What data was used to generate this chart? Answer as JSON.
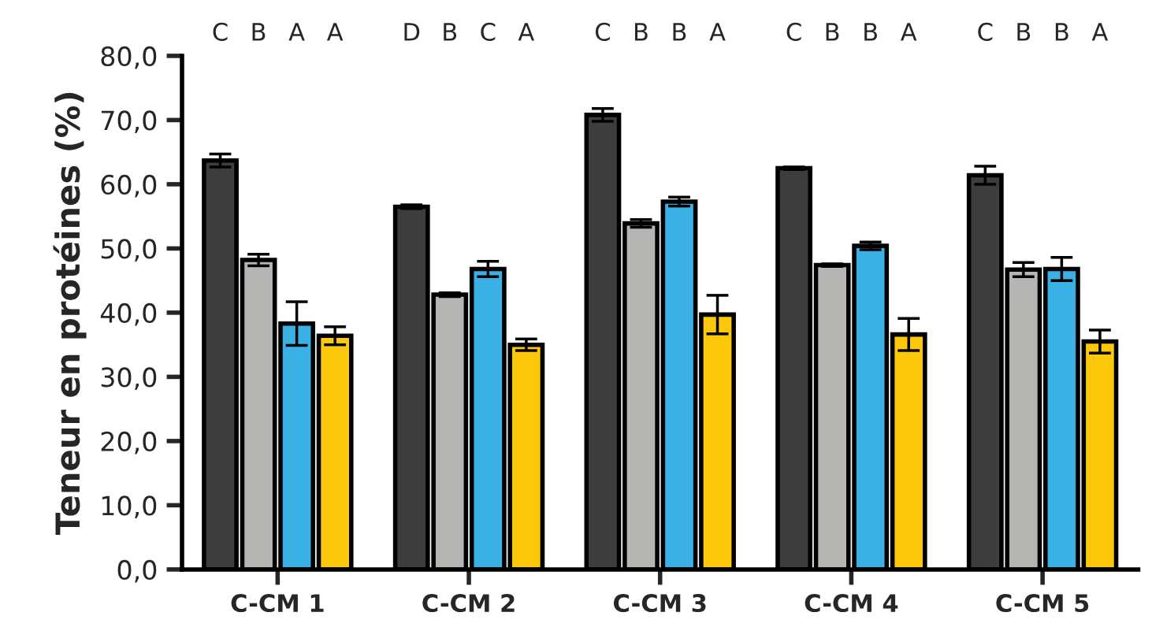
{
  "chart_data": {
    "type": "bar",
    "ylabel": "Teneur en protéines (%)",
    "categories": [
      "C-CM 1",
      "C-CM 2",
      "C-CM 3",
      "C-CM 4",
      "C-CM 5"
    ],
    "ylim": [
      0,
      80
    ],
    "yticks": [
      {
        "value": 0,
        "label": "0,0"
      },
      {
        "value": 10,
        "label": "10,0"
      },
      {
        "value": 20,
        "label": "20,0"
      },
      {
        "value": 30,
        "label": "30,0"
      },
      {
        "value": 40,
        "label": "40,0"
      },
      {
        "value": 50,
        "label": "50,0"
      },
      {
        "value": 60,
        "label": "60,0"
      },
      {
        "value": 70,
        "label": "70,0"
      },
      {
        "value": 80,
        "label": "80,0"
      }
    ],
    "grid": false,
    "legend": false,
    "annotations": [
      "C",
      "B",
      "A",
      "A",
      "D",
      "B",
      "C",
      "A",
      "C",
      "B",
      "B",
      "A",
      "C",
      "B",
      "B",
      "A",
      "C",
      "B",
      "B",
      "A"
    ],
    "series": [
      {
        "color": "#3d3d3d",
        "values": [
          63.7,
          56.5,
          70.8,
          62.5,
          61.4
        ],
        "errors": [
          1.0,
          0.3,
          1.0,
          0.2,
          1.4
        ]
      },
      {
        "color": "#b5b5b3",
        "values": [
          48.2,
          42.8,
          53.9,
          47.4,
          46.7
        ],
        "errors": [
          0.9,
          0.3,
          0.6,
          0.2,
          1.1
        ]
      },
      {
        "color": "#3bb0e4",
        "values": [
          38.3,
          46.8,
          57.3,
          50.4,
          46.8
        ],
        "errors": [
          3.4,
          1.2,
          0.7,
          0.6,
          1.8
        ]
      },
      {
        "color": "#fdc70c",
        "values": [
          36.4,
          35.0,
          39.7,
          36.6,
          35.5
        ],
        "errors": [
          1.4,
          0.9,
          3.0,
          2.5,
          1.8
        ]
      }
    ]
  }
}
